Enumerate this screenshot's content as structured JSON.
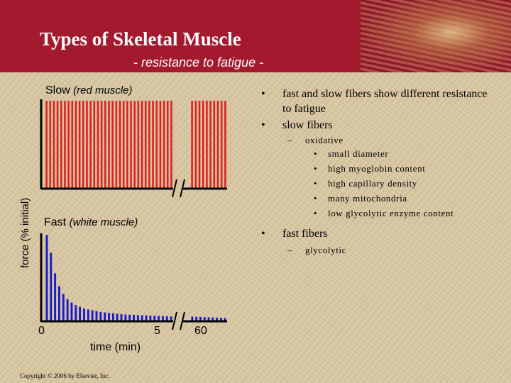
{
  "header": {
    "title": "Types of Skeletal Muscle",
    "subtitle": "- resistance to fatigue -"
  },
  "panels": {
    "slow_label": "Slow",
    "slow_sub": "(red muscle)",
    "fast_label": "Fast",
    "fast_sub": "(white muscle)"
  },
  "axes": {
    "ylabel": "force (% initial)",
    "xlabel": "time (min)",
    "ticks": [
      "0",
      "5",
      "60"
    ]
  },
  "bullets": [
    {
      "text": "fast and slow fibers show different resistance to fatigue"
    },
    {
      "text": "slow fibers",
      "sub": {
        "text": "oxidative",
        "items": [
          "small diameter",
          "high myoglobin content",
          "high capillary density",
          "many mitochondria",
          "low glycolytic enzyme content"
        ]
      }
    },
    {
      "text": "fast fibers",
      "sub": {
        "text": "glycolytic"
      }
    }
  ],
  "footer": {
    "copyright": "Copyright © 2006 by Elsevier, Inc."
  },
  "colors": {
    "banner": "#a3192d",
    "slow_bars": "#e02020",
    "fast_bars": "#1a1ac8",
    "background": "#d8c6a1"
  },
  "chart_data": [
    {
      "type": "bar",
      "title": "Slow (red muscle)",
      "ylabel": "force (% initial)",
      "series": [
        {
          "name": "Slow (red muscle)",
          "values": [
            100,
            100,
            100,
            100,
            100,
            100,
            100,
            100,
            100,
            100,
            100,
            100,
            100,
            100,
            100,
            100,
            100,
            100,
            100,
            100,
            100,
            100,
            100,
            100,
            100,
            100,
            100,
            100,
            100,
            100,
            100,
            100,
            100,
            100,
            100,
            100,
            100,
            100,
            100,
            100,
            100,
            100,
            100,
            100,
            100
          ]
        }
      ],
      "ylim": [
        0,
        100
      ]
    },
    {
      "type": "bar",
      "title": "Fast (white muscle)",
      "xlabel": "time (min)",
      "ylabel": "force (% initial)",
      "x_ticks": [
        "0",
        "5",
        "60"
      ],
      "series": [
        {
          "name": "Fast (white muscle)",
          "values": [
            100,
            79,
            55,
            40,
            31,
            25,
            21,
            18,
            16,
            14,
            13,
            12,
            11,
            10,
            9.5,
            9,
            8.5,
            8,
            7.5,
            7,
            6.8,
            6.6,
            6.4,
            6.2,
            6,
            5.8,
            5.6,
            5.4,
            5.2,
            5,
            4.8,
            4.6,
            4.4,
            4.2,
            4,
            3.8,
            3.6,
            3.4,
            3.2,
            3
          ]
        }
      ],
      "ylim": [
        0,
        100
      ]
    }
  ]
}
